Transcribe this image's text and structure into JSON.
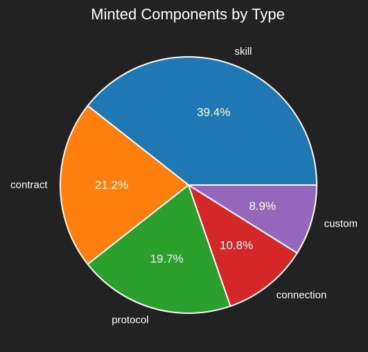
{
  "chart_data": {
    "type": "pie",
    "title": "Minted Components by Type",
    "slices": [
      {
        "label": "skill",
        "percent_label": "39.4%",
        "value": 39.4,
        "color": "#1f77b4"
      },
      {
        "label": "contract",
        "percent_label": "21.2%",
        "value": 21.2,
        "color": "#ff7f0e"
      },
      {
        "label": "protocol",
        "percent_label": "19.7%",
        "value": 19.7,
        "color": "#2ca02c"
      },
      {
        "label": "connection",
        "percent_label": "10.8%",
        "value": 10.8,
        "color": "#d62728"
      },
      {
        "label": "custom",
        "percent_label": "8.9%",
        "value": 8.9,
        "color": "#9467bd"
      }
    ],
    "start_angle_deg": 0,
    "direction": "counterclockwise",
    "background": "#222222",
    "edge_color": "#ffffff"
  }
}
